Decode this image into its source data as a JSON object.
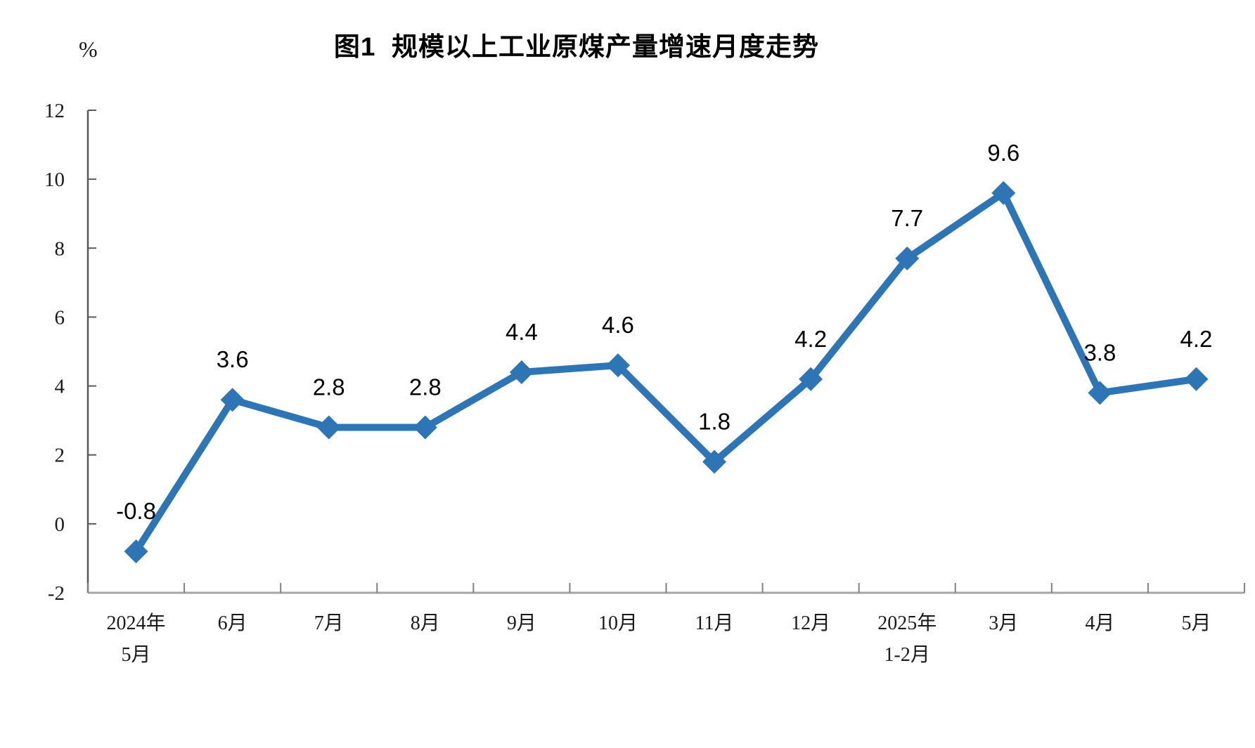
{
  "page": {
    "background": "#ffffff"
  },
  "chart_data": {
    "type": "line",
    "title": "图1  规模以上工业原煤产量增速月度走势",
    "unit_label": "%",
    "categories": [
      [
        "2024年",
        "5月"
      ],
      [
        "6月"
      ],
      [
        "7月"
      ],
      [
        "8月"
      ],
      [
        "9月"
      ],
      [
        "10月"
      ],
      [
        "11月"
      ],
      [
        "12月"
      ],
      [
        "2025年",
        "1-2月"
      ],
      [
        "3月"
      ],
      [
        "4月"
      ],
      [
        "5月"
      ]
    ],
    "values": [
      -0.8,
      3.6,
      2.8,
      2.8,
      4.4,
      4.6,
      1.8,
      4.2,
      7.7,
      9.6,
      3.8,
      4.2
    ],
    "data_labels": [
      "-0.8",
      "3.6",
      "2.8",
      "2.8",
      "4.4",
      "4.6",
      "1.8",
      "4.2",
      "7.7",
      "9.6",
      "3.8",
      "4.2"
    ],
    "y_ticks": [
      -2,
      0,
      2,
      4,
      6,
      8,
      10,
      12
    ],
    "ylim": [
      -2,
      12
    ],
    "xlabel": "",
    "ylabel": "%",
    "grid": "off",
    "legend": "none",
    "marker": "diamond",
    "line_color": "#2E75B6",
    "marker_color": "#2E75B6",
    "x_axis_color": "#a6a6a6",
    "y_axis_color": "#595959",
    "tick_color": "#808080",
    "label_color": "#000000",
    "axis_text_color": "#1a1a1a"
  }
}
